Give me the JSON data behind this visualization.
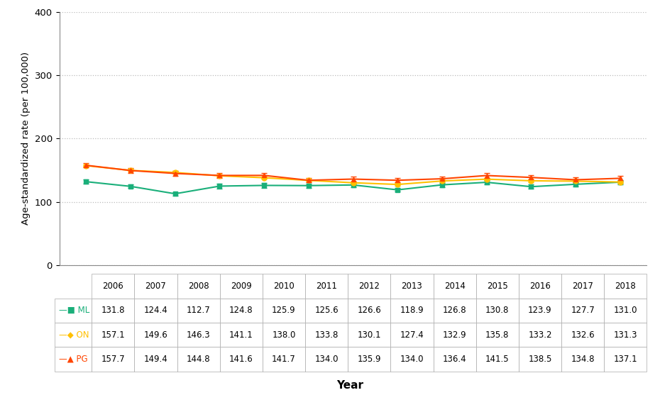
{
  "years": [
    2006,
    2007,
    2008,
    2009,
    2010,
    2011,
    2012,
    2013,
    2014,
    2015,
    2016,
    2017,
    2018
  ],
  "ML": [
    131.8,
    124.4,
    112.7,
    124.8,
    125.9,
    125.6,
    126.6,
    118.9,
    126.8,
    130.8,
    123.9,
    127.7,
    131.0
  ],
  "ON": [
    157.1,
    149.6,
    146.3,
    141.1,
    138.0,
    133.8,
    130.1,
    127.4,
    132.9,
    135.8,
    133.2,
    132.6,
    131.3
  ],
  "PG": [
    157.7,
    149.4,
    144.8,
    141.6,
    141.7,
    134.0,
    135.9,
    134.0,
    136.4,
    141.5,
    138.5,
    134.8,
    137.1
  ],
  "ML_err": [
    3.0,
    3.0,
    3.0,
    3.5,
    3.5,
    3.5,
    3.5,
    3.0,
    3.5,
    3.5,
    3.5,
    3.5,
    3.5
  ],
  "ON_err": [
    2.0,
    2.0,
    2.0,
    2.0,
    2.0,
    2.0,
    2.0,
    2.0,
    2.0,
    2.0,
    2.0,
    2.0,
    2.0
  ],
  "PG_err": [
    3.5,
    3.5,
    3.5,
    3.5,
    3.5,
    3.5,
    3.5,
    3.5,
    3.5,
    4.0,
    3.5,
    3.5,
    3.5
  ],
  "ML_color": "#1AAF7A",
  "ON_color": "#FFC000",
  "PG_color": "#FF4500",
  "ylabel": "Age-standardized rate (per 100,000)",
  "xlabel": "Year",
  "ylim": [
    0,
    400
  ],
  "yticks": [
    0,
    100,
    200,
    300,
    400
  ],
  "series_names": [
    "ML",
    "ON",
    "PG"
  ],
  "background_color": "#ffffff",
  "grid_color": "#bbbbbb",
  "table_edge_color": "#aaaaaa",
  "fig_width": 9.3,
  "fig_height": 5.57
}
